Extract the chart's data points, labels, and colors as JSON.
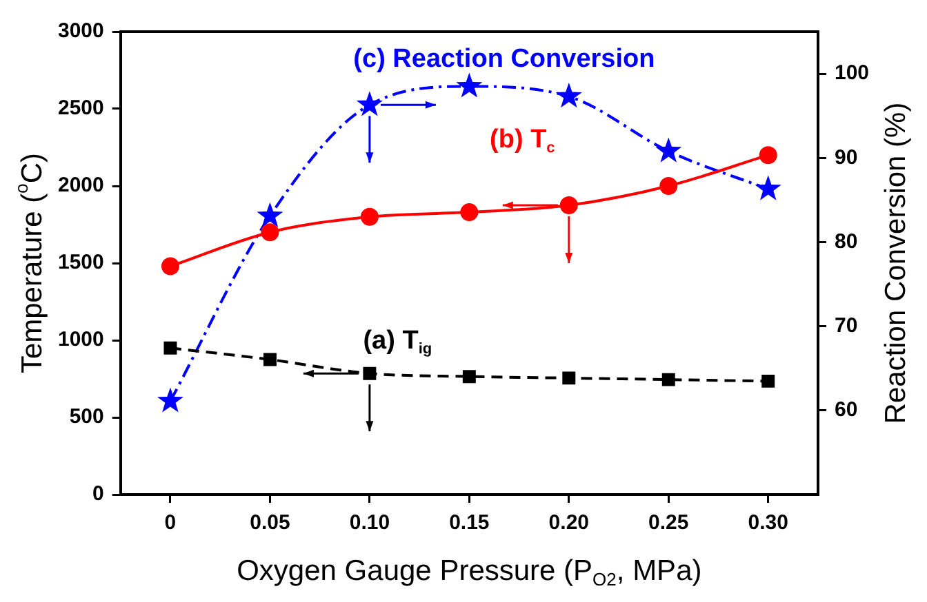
{
  "chart_data": {
    "type": "line",
    "xlabel": "Oxygen Gauge Pressure (P$_{O2}$, MPa)",
    "ylabel": "Temperature ($^{o}$C)",
    "y2label": "Reaction Conversion (%)",
    "x": [
      0,
      0.05,
      0.1,
      0.15,
      0.2,
      0.25,
      0.3
    ],
    "xlim": [
      -0.025,
      0.325
    ],
    "xticks": [
      0,
      0.05,
      {
        "value": 0.1,
        "label": "0.10"
      },
      0.15,
      {
        "value": 0.2,
        "label": "0.20"
      },
      0.25,
      {
        "value": 0.3,
        "label": "0.30"
      }
    ],
    "ylim": [
      0,
      3000
    ],
    "yticks": [
      0,
      500,
      1000,
      1500,
      2000,
      2500,
      3000
    ],
    "y2lim": [
      50,
      105
    ],
    "y2ticks": [
      60,
      70,
      80,
      90,
      100
    ],
    "grid": false,
    "legend": false,
    "series": [
      {
        "name": "(a) T$_{ig}$",
        "color": "#000000",
        "values": [
          950,
          875,
          785,
          765,
          755,
          745,
          735
        ],
        "marker": "square",
        "line_style": "dashed"
      },
      {
        "name": "(b) T$_{c}$",
        "color": "#ff0000",
        "values": [
          1480,
          1700,
          1800,
          1830,
          1875,
          2000,
          2200
        ],
        "marker": "circle",
        "line_style": "solid"
      },
      {
        "name": "(c) Reaction Conversion",
        "color": "#0000ff",
        "values": [
          61.1,
          83.1,
          96.3,
          98.5,
          97.3,
          90.8,
          86.3
        ],
        "marker": "star",
        "line_style": "dashdot",
        "axis": "y2"
      }
    ]
  }
}
